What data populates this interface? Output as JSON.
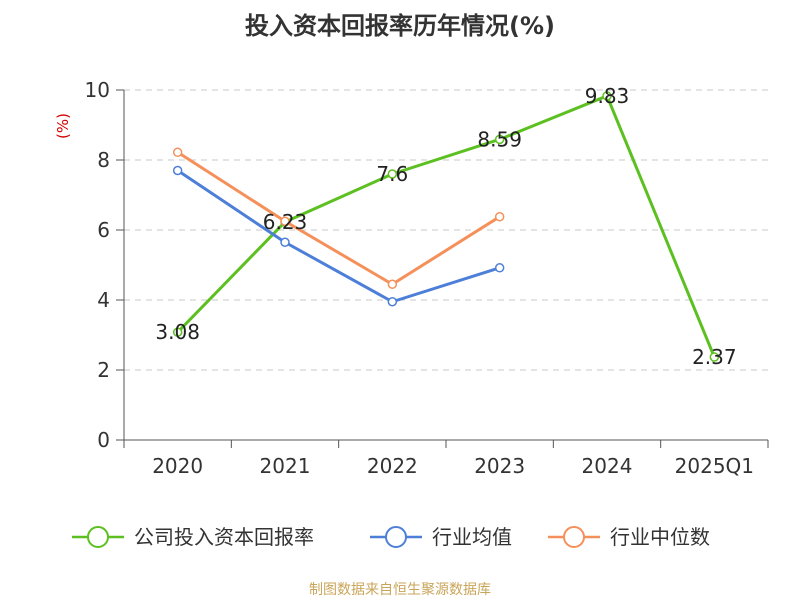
{
  "chart_data": {
    "type": "line",
    "title": "投入资本回报率历年情况(%)",
    "xlabel": "",
    "ylabel": "(%)",
    "categories": [
      "2020",
      "2021",
      "2022",
      "2023",
      "2024",
      "2025Q1"
    ],
    "ylim": [
      0,
      10
    ],
    "yticks": [
      0,
      2,
      4,
      6,
      8,
      10
    ],
    "grid": true,
    "legend_position": "bottom",
    "series": [
      {
        "name": "公司投入资本回报率",
        "color": "#5cc021",
        "values": [
          3.08,
          6.23,
          7.6,
          8.59,
          9.83,
          2.37
        ],
        "labels": [
          "3.08",
          "6.23",
          "7.6",
          "8.59",
          "9.83",
          "2.37"
        ]
      },
      {
        "name": "行业均值",
        "color": "#4e7fd8",
        "values": [
          7.7,
          5.65,
          3.95,
          4.92,
          null,
          null
        ]
      },
      {
        "name": "行业中位数",
        "color": "#f5905a",
        "values": [
          8.22,
          6.25,
          4.45,
          6.38,
          null,
          null
        ]
      }
    ]
  },
  "source": "制图数据来自恒生聚源数据库",
  "ylabel_color": "#d40000"
}
